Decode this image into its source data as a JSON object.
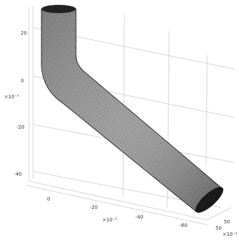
{
  "axes": {
    "z": {
      "ticks": [
        "20",
        "0",
        "-20",
        "-40"
      ],
      "scale": "×10⁻³"
    },
    "x": {
      "ticks": [
        "0",
        "-20",
        "-40",
        "-60"
      ],
      "scale": "×10⁻³"
    },
    "y": {
      "ticks": [
        "50",
        "50"
      ],
      "scale": "×10⁻³"
    }
  }
}
